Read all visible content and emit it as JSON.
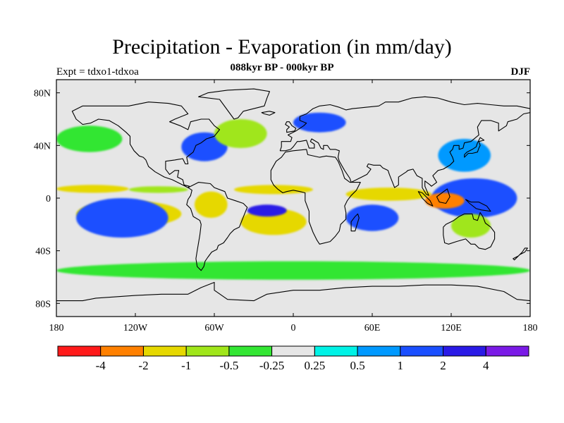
{
  "title": "Precipitation - Evaporation (in mm/day)",
  "subtitle": "088kyr BP - 000kyr BP",
  "experiment_label": "Expt = tdxo1-tdxoa",
  "season": "DJF",
  "map": {
    "projection": "cylindrical-equidistant",
    "lon_range": [
      -180,
      180
    ],
    "lat_range": [
      -90,
      90
    ],
    "background_color": "#e6e6e6",
    "y_ticks": [
      {
        "lat": 80,
        "label": "80N"
      },
      {
        "lat": 40,
        "label": "40N"
      },
      {
        "lat": 0,
        "label": "0"
      },
      {
        "lat": -40,
        "label": "40S"
      },
      {
        "lat": -80,
        "label": "80S"
      }
    ],
    "x_ticks": [
      {
        "lon": -180,
        "label": "180"
      },
      {
        "lon": -120,
        "label": "120W"
      },
      {
        "lon": -60,
        "label": "60W"
      },
      {
        "lon": 0,
        "label": "0"
      },
      {
        "lon": 60,
        "label": "60E"
      },
      {
        "lon": 120,
        "label": "120E"
      },
      {
        "lon": 180,
        "label": "180"
      }
    ]
  },
  "colorbar": {
    "colors": [
      "#ff1a1a",
      "#ff8000",
      "#e6d800",
      "#a0e61a",
      "#33e633",
      "#e6e6e6",
      "#00f2e6",
      "#0099ff",
      "#1a4fff",
      "#2a1ae6",
      "#7a1ae6"
    ],
    "labels": [
      "-4",
      "-2",
      "-1",
      "-0.5",
      "-0.25",
      "0.25",
      "0.5",
      "1",
      "2",
      "4"
    ]
  },
  "chart_data": {
    "type": "heatmap",
    "title": "Precipitation - Evaporation (in mm/day)",
    "subtitle": "088kyr BP - 000kyr BP",
    "levels": [
      -4,
      -2,
      -1,
      -0.5,
      -0.25,
      0.25,
      0.5,
      1,
      2,
      4
    ],
    "features": [
      {
        "name": "tropical-band-west-pacific",
        "lon": [
          -180,
          -125
        ],
        "lat": [
          4,
          10
        ],
        "value": -1.5
      },
      {
        "name": "tropical-band-east-pacific",
        "lon": [
          -125,
          -80
        ],
        "lat": [
          4,
          9
        ],
        "value": -0.7
      },
      {
        "name": "tropical-band-atlantic",
        "lon": [
          -45,
          15
        ],
        "lat": [
          3,
          10
        ],
        "value": -1.5
      },
      {
        "name": "tropical-band-indian-ocean",
        "lon": [
          40,
          105
        ],
        "lat": [
          -2,
          8
        ],
        "value": -1.5
      },
      {
        "name": "south-pacific-convergence-zone-dry",
        "lon": [
          -165,
          -85
        ],
        "lat": [
          -22,
          -2
        ],
        "value": -1.5
      },
      {
        "name": "south-pacific-wet-center",
        "lon": [
          -155,
          -110
        ],
        "lat": [
          -20,
          -3
        ],
        "value": 4
      },
      {
        "name": "south-pacific-wet-ring",
        "lon": [
          -165,
          -95
        ],
        "lat": [
          -30,
          0
        ],
        "value": 1.5
      },
      {
        "name": "south-atlantic-dry",
        "lon": [
          -40,
          10
        ],
        "lat": [
          -28,
          -8
        ],
        "value": -1.5
      },
      {
        "name": "south-atlantic-wet-center",
        "lon": [
          -35,
          -5
        ],
        "lat": [
          -14,
          -5
        ],
        "value": 4
      },
      {
        "name": "amazon-dry",
        "lon": [
          -75,
          -50
        ],
        "lat": [
          -15,
          5
        ],
        "value": -1.5
      },
      {
        "name": "madagascar-region-wet",
        "lon": [
          40,
          80
        ],
        "lat": [
          -25,
          -5
        ],
        "value": 2
      },
      {
        "name": "maritime-continent-wet",
        "lon": [
          105,
          170
        ],
        "lat": [
          -15,
          15
        ],
        "value": 2
      },
      {
        "name": "maritime-continent-dry-core",
        "lon": [
          100,
          130
        ],
        "lat": [
          -8,
          4
        ],
        "value": -2.5
      },
      {
        "name": "australia-dry",
        "lon": [
          120,
          150
        ],
        "lat": [
          -30,
          -12
        ],
        "value": -0.7
      },
      {
        "name": "north-atlantic-wet",
        "lon": [
          -85,
          -50
        ],
        "lat": [
          28,
          50
        ],
        "value": 2
      },
      {
        "name": "north-atlantic-dry",
        "lon": [
          -60,
          -20
        ],
        "lat": [
          38,
          60
        ],
        "value": -0.7
      },
      {
        "name": "europe-wet",
        "lon": [
          0,
          40
        ],
        "lat": [
          50,
          65
        ],
        "value": 1.5
      },
      {
        "name": "north-pacific-dry",
        "lon": [
          -180,
          -130
        ],
        "lat": [
          35,
          55
        ],
        "value": -0.4
      },
      {
        "name": "west-pacific-wet-north",
        "lon": [
          110,
          150
        ],
        "lat": [
          20,
          45
        ],
        "value": 1
      },
      {
        "name": "southern-ocean-dry-band",
        "lon": [
          -180,
          180
        ],
        "lat": [
          -62,
          -48
        ],
        "value": -0.4
      }
    ]
  }
}
